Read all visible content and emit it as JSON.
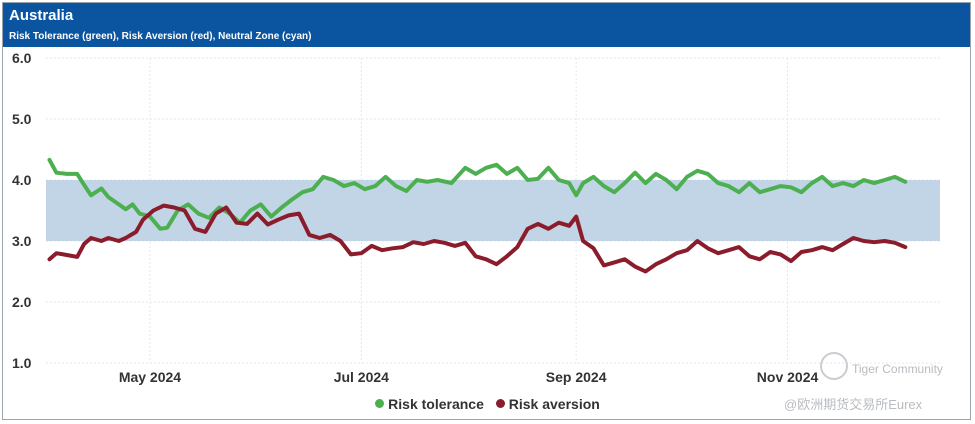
{
  "header": {
    "title": "Australia",
    "subtitle": "Risk Tolerance (green), Risk Aversion (red), Neutral Zone (cyan)"
  },
  "colors": {
    "header_bg": "#0b55a0",
    "tolerance": "#4caf50",
    "aversion": "#8b1c2c",
    "neutral_zone": "#c2d5e6"
  },
  "legend": {
    "tolerance": "Risk tolerance",
    "aversion": "Risk aversion"
  },
  "watermark": {
    "line1": "Tiger Community",
    "line2": "@欧洲期货交易所Eurex"
  },
  "chart_data": {
    "type": "line",
    "title": "Australia",
    "subtitle": "Risk Tolerance (green), Risk Aversion (red), Neutral Zone (cyan)",
    "ylim": [
      1.0,
      6.0
    ],
    "yticks": [
      "6.0",
      "5.0",
      "4.0",
      "3.0",
      "2.0",
      "1.0"
    ],
    "x_range": [
      "2024-04-01",
      "2024-12-15"
    ],
    "x_ticks": [
      {
        "date": "2024-05-01",
        "label": "May 2024"
      },
      {
        "date": "2024-07-01",
        "label": "Jul 2024"
      },
      {
        "date": "2024-09-01",
        "label": "Sep 2024"
      },
      {
        "date": "2024-11-01",
        "label": "Nov 2024"
      }
    ],
    "neutral_zone": [
      3.0,
      4.0
    ],
    "series": [
      {
        "name": "Risk tolerance",
        "points": [
          [
            "2024-04-02",
            4.33
          ],
          [
            "2024-04-04",
            4.12
          ],
          [
            "2024-04-07",
            4.1
          ],
          [
            "2024-04-10",
            4.1
          ],
          [
            "2024-04-12",
            3.92
          ],
          [
            "2024-04-14",
            3.75
          ],
          [
            "2024-04-17",
            3.86
          ],
          [
            "2024-04-19",
            3.72
          ],
          [
            "2024-04-22",
            3.6
          ],
          [
            "2024-04-24",
            3.52
          ],
          [
            "2024-04-26",
            3.6
          ],
          [
            "2024-04-28",
            3.45
          ],
          [
            "2024-05-01",
            3.4
          ],
          [
            "2024-05-04",
            3.2
          ],
          [
            "2024-05-06",
            3.22
          ],
          [
            "2024-05-09",
            3.5
          ],
          [
            "2024-05-12",
            3.6
          ],
          [
            "2024-05-15",
            3.45
          ],
          [
            "2024-05-18",
            3.38
          ],
          [
            "2024-05-21",
            3.55
          ],
          [
            "2024-05-24",
            3.45
          ],
          [
            "2024-05-27",
            3.3
          ],
          [
            "2024-05-30",
            3.5
          ],
          [
            "2024-06-02",
            3.6
          ],
          [
            "2024-06-05",
            3.4
          ],
          [
            "2024-06-08",
            3.55
          ],
          [
            "2024-06-11",
            3.68
          ],
          [
            "2024-06-14",
            3.8
          ],
          [
            "2024-06-17",
            3.85
          ],
          [
            "2024-06-20",
            4.05
          ],
          [
            "2024-06-23",
            4.0
          ],
          [
            "2024-06-26",
            3.9
          ],
          [
            "2024-06-29",
            3.95
          ],
          [
            "2024-07-02",
            3.85
          ],
          [
            "2024-07-05",
            3.9
          ],
          [
            "2024-07-08",
            4.05
          ],
          [
            "2024-07-11",
            3.9
          ],
          [
            "2024-07-14",
            3.82
          ],
          [
            "2024-07-17",
            4.0
          ],
          [
            "2024-07-20",
            3.97
          ],
          [
            "2024-07-23",
            4.0
          ],
          [
            "2024-07-27",
            3.95
          ],
          [
            "2024-07-31",
            4.2
          ],
          [
            "2024-08-03",
            4.1
          ],
          [
            "2024-08-06",
            4.2
          ],
          [
            "2024-08-09",
            4.25
          ],
          [
            "2024-08-12",
            4.1
          ],
          [
            "2024-08-15",
            4.2
          ],
          [
            "2024-08-18",
            4.0
          ],
          [
            "2024-08-21",
            4.02
          ],
          [
            "2024-08-24",
            4.2
          ],
          [
            "2024-08-27",
            4.0
          ],
          [
            "2024-08-30",
            3.95
          ],
          [
            "2024-09-01",
            3.75
          ],
          [
            "2024-09-03",
            3.95
          ],
          [
            "2024-09-06",
            4.05
          ],
          [
            "2024-09-09",
            3.9
          ],
          [
            "2024-09-12",
            3.8
          ],
          [
            "2024-09-15",
            3.95
          ],
          [
            "2024-09-18",
            4.12
          ],
          [
            "2024-09-21",
            3.95
          ],
          [
            "2024-09-24",
            4.1
          ],
          [
            "2024-09-27",
            4.0
          ],
          [
            "2024-09-30",
            3.85
          ],
          [
            "2024-10-03",
            4.05
          ],
          [
            "2024-10-06",
            4.15
          ],
          [
            "2024-10-09",
            4.1
          ],
          [
            "2024-10-12",
            3.95
          ],
          [
            "2024-10-15",
            3.9
          ],
          [
            "2024-10-18",
            3.8
          ],
          [
            "2024-10-21",
            3.95
          ],
          [
            "2024-10-24",
            3.8
          ],
          [
            "2024-10-27",
            3.85
          ],
          [
            "2024-10-30",
            3.9
          ],
          [
            "2024-11-02",
            3.88
          ],
          [
            "2024-11-05",
            3.8
          ],
          [
            "2024-11-08",
            3.95
          ],
          [
            "2024-11-11",
            4.05
          ],
          [
            "2024-11-14",
            3.9
          ],
          [
            "2024-11-17",
            3.95
          ],
          [
            "2024-11-20",
            3.9
          ],
          [
            "2024-11-23",
            4.0
          ],
          [
            "2024-11-26",
            3.95
          ],
          [
            "2024-11-29",
            4.0
          ],
          [
            "2024-12-02",
            4.05
          ],
          [
            "2024-12-05",
            3.97
          ]
        ]
      },
      {
        "name": "Risk aversion",
        "points": [
          [
            "2024-04-02",
            2.7
          ],
          [
            "2024-04-04",
            2.8
          ],
          [
            "2024-04-07",
            2.77
          ],
          [
            "2024-04-10",
            2.74
          ],
          [
            "2024-04-12",
            2.95
          ],
          [
            "2024-04-14",
            3.05
          ],
          [
            "2024-04-17",
            3.0
          ],
          [
            "2024-04-19",
            3.05
          ],
          [
            "2024-04-22",
            3.0
          ],
          [
            "2024-04-24",
            3.05
          ],
          [
            "2024-04-27",
            3.15
          ],
          [
            "2024-04-29",
            3.35
          ],
          [
            "2024-05-02",
            3.5
          ],
          [
            "2024-05-05",
            3.58
          ],
          [
            "2024-05-08",
            3.55
          ],
          [
            "2024-05-11",
            3.5
          ],
          [
            "2024-05-14",
            3.2
          ],
          [
            "2024-05-17",
            3.15
          ],
          [
            "2024-05-20",
            3.45
          ],
          [
            "2024-05-23",
            3.55
          ],
          [
            "2024-05-26",
            3.3
          ],
          [
            "2024-05-29",
            3.28
          ],
          [
            "2024-06-01",
            3.45
          ],
          [
            "2024-06-04",
            3.27
          ],
          [
            "2024-06-07",
            3.35
          ],
          [
            "2024-06-10",
            3.42
          ],
          [
            "2024-06-13",
            3.45
          ],
          [
            "2024-06-16",
            3.1
          ],
          [
            "2024-06-19",
            3.05
          ],
          [
            "2024-06-22",
            3.1
          ],
          [
            "2024-06-25",
            3.0
          ],
          [
            "2024-06-28",
            2.78
          ],
          [
            "2024-07-01",
            2.8
          ],
          [
            "2024-07-04",
            2.92
          ],
          [
            "2024-07-07",
            2.85
          ],
          [
            "2024-07-10",
            2.88
          ],
          [
            "2024-07-13",
            2.9
          ],
          [
            "2024-07-16",
            2.98
          ],
          [
            "2024-07-19",
            2.95
          ],
          [
            "2024-07-22",
            3.0
          ],
          [
            "2024-07-25",
            2.97
          ],
          [
            "2024-07-28",
            2.92
          ],
          [
            "2024-07-31",
            2.97
          ],
          [
            "2024-08-03",
            2.75
          ],
          [
            "2024-08-06",
            2.7
          ],
          [
            "2024-08-09",
            2.62
          ],
          [
            "2024-08-12",
            2.75
          ],
          [
            "2024-08-15",
            2.9
          ],
          [
            "2024-08-18",
            3.2
          ],
          [
            "2024-08-21",
            3.28
          ],
          [
            "2024-08-24",
            3.2
          ],
          [
            "2024-08-27",
            3.3
          ],
          [
            "2024-08-30",
            3.25
          ],
          [
            "2024-09-01",
            3.4
          ],
          [
            "2024-09-03",
            3.0
          ],
          [
            "2024-09-06",
            2.88
          ],
          [
            "2024-09-09",
            2.6
          ],
          [
            "2024-09-12",
            2.65
          ],
          [
            "2024-09-15",
            2.7
          ],
          [
            "2024-09-18",
            2.58
          ],
          [
            "2024-09-21",
            2.5
          ],
          [
            "2024-09-24",
            2.62
          ],
          [
            "2024-09-27",
            2.7
          ],
          [
            "2024-09-30",
            2.8
          ],
          [
            "2024-10-03",
            2.85
          ],
          [
            "2024-10-06",
            3.0
          ],
          [
            "2024-10-09",
            2.88
          ],
          [
            "2024-10-12",
            2.8
          ],
          [
            "2024-10-15",
            2.85
          ],
          [
            "2024-10-18",
            2.9
          ],
          [
            "2024-10-21",
            2.75
          ],
          [
            "2024-10-24",
            2.7
          ],
          [
            "2024-10-27",
            2.82
          ],
          [
            "2024-10-30",
            2.78
          ],
          [
            "2024-11-02",
            2.67
          ],
          [
            "2024-11-05",
            2.82
          ],
          [
            "2024-11-08",
            2.85
          ],
          [
            "2024-11-11",
            2.9
          ],
          [
            "2024-11-14",
            2.85
          ],
          [
            "2024-11-17",
            2.95
          ],
          [
            "2024-11-20",
            3.05
          ],
          [
            "2024-11-23",
            3.0
          ],
          [
            "2024-11-26",
            2.98
          ],
          [
            "2024-11-29",
            3.0
          ],
          [
            "2024-12-02",
            2.97
          ],
          [
            "2024-12-05",
            2.9
          ]
        ]
      }
    ]
  }
}
